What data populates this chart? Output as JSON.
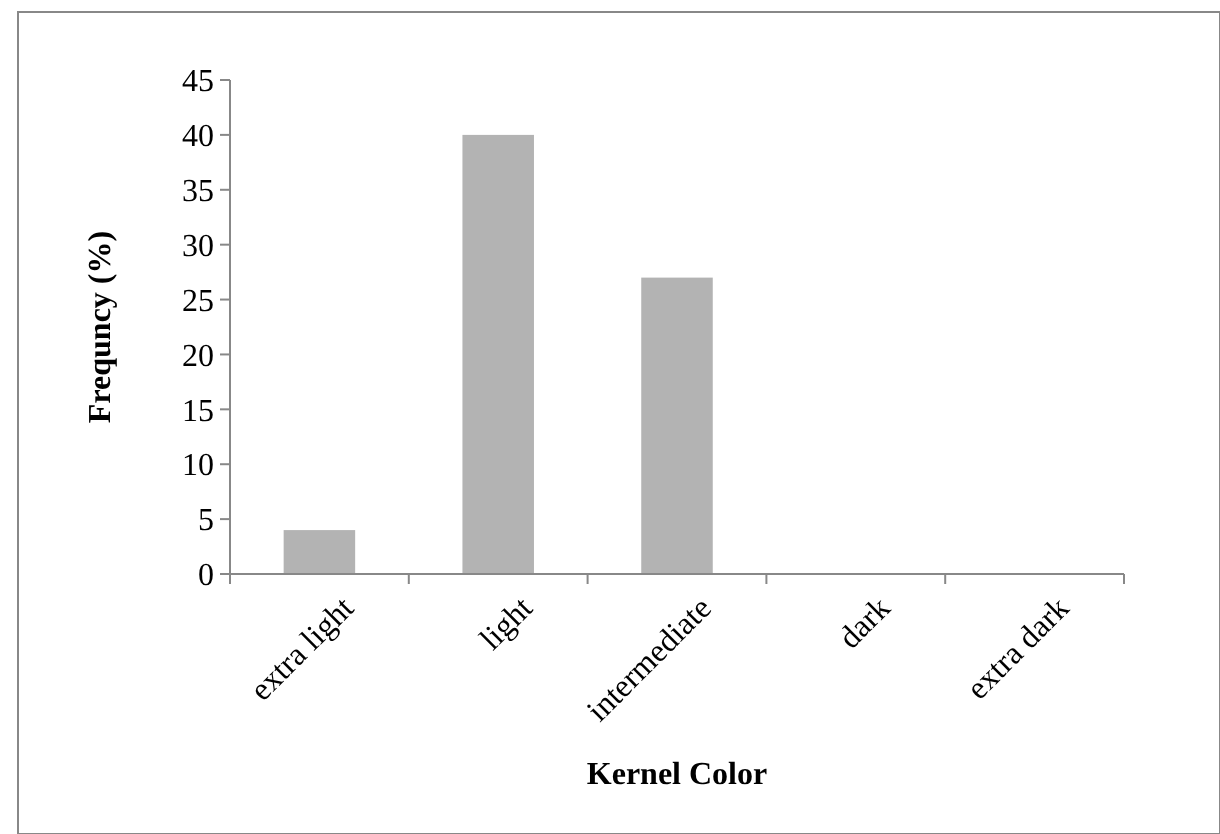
{
  "chart_data": {
    "type": "bar",
    "xlabel": "Kernel Color",
    "ylabel": "Frequncy (%)",
    "categories": [
      "extra light",
      "light",
      "intermediate",
      "dark",
      "extra dark"
    ],
    "values": [
      4,
      40,
      27,
      0,
      0
    ],
    "color": "#b3b3b3",
    "ylim": [
      0,
      45
    ],
    "yticks": [
      0,
      5,
      10,
      15,
      20,
      25,
      30,
      35,
      40,
      45
    ]
  }
}
